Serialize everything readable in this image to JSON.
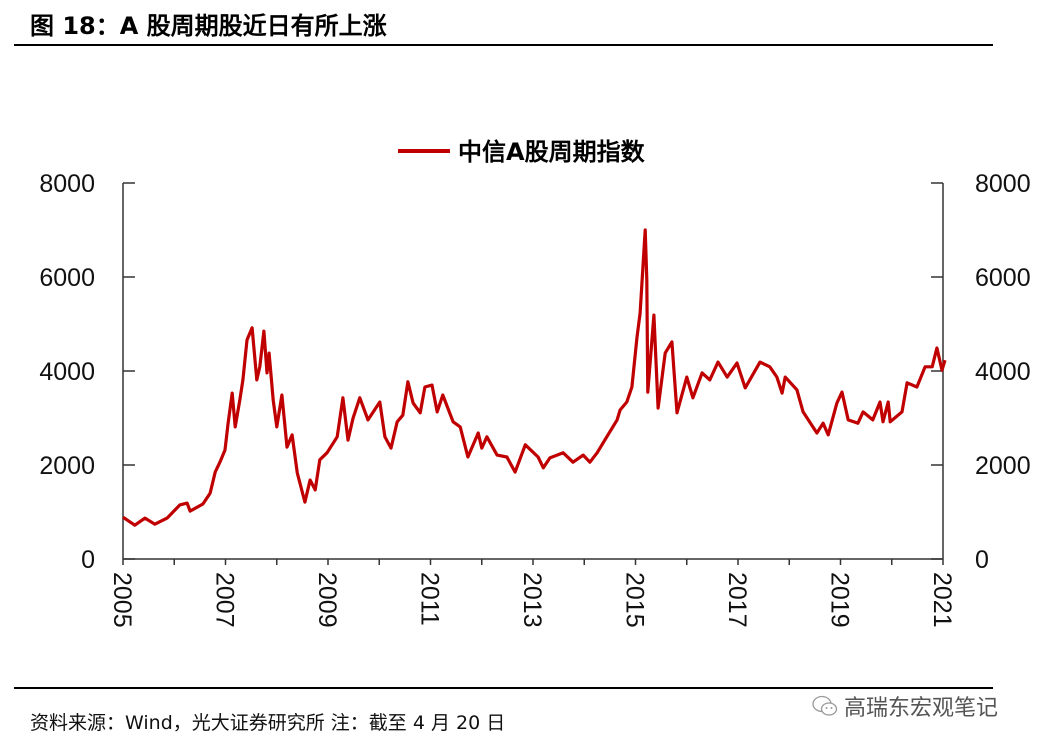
{
  "title": "图 18：A 股周期股近日有所上涨",
  "source": "资料来源：Wind，光大证券研究所 注：截至 4 月 20 日",
  "watermark": "高瑞东宏观笔记",
  "chart_data": {
    "type": "line",
    "title": "",
    "xlabel": "",
    "ylabel": "",
    "xlim": [
      2005,
      2021
    ],
    "ylim": [
      0,
      8000
    ],
    "x_ticks": [
      "2005",
      "2007",
      "2009",
      "2011",
      "2013",
      "2015",
      "2017",
      "2019",
      "2021"
    ],
    "y_ticks": [
      "0",
      "2000",
      "4000",
      "6000",
      "8000"
    ],
    "y_ticks_right": [
      "0",
      "2000",
      "4000",
      "6000",
      "8000"
    ],
    "grid": false,
    "legend": "top-center",
    "series": [
      {
        "name": "中信A股周期指数",
        "color": "#C00000",
        "x": [
          2005.0,
          2005.23,
          2005.43,
          2005.62,
          2005.86,
          2006.11,
          2006.25,
          2006.31,
          2006.56,
          2006.7,
          2006.8,
          2006.89,
          2006.99,
          2007.05,
          2007.13,
          2007.19,
          2007.28,
          2007.34,
          2007.42,
          2007.52,
          2007.61,
          2007.67,
          2007.75,
          2007.81,
          2007.85,
          2007.93,
          2008.0,
          2008.1,
          2008.2,
          2008.3,
          2008.4,
          2008.55,
          2008.65,
          2008.75,
          2008.84,
          2008.98,
          2009.18,
          2009.29,
          2009.39,
          2009.49,
          2009.62,
          2009.78,
          2010.01,
          2010.11,
          2010.23,
          2010.35,
          2010.46,
          2010.56,
          2010.66,
          2010.8,
          2010.89,
          2011.03,
          2011.13,
          2011.24,
          2011.44,
          2011.58,
          2011.73,
          2011.93,
          2012.0,
          2012.1,
          2012.3,
          2012.49,
          2012.65,
          2012.85,
          2013.1,
          2013.2,
          2013.33,
          2013.59,
          2013.78,
          2013.98,
          2014.11,
          2014.25,
          2014.44,
          2014.64,
          2014.7,
          2014.83,
          2014.93,
          2015.03,
          2015.09,
          2015.19,
          2015.22,
          2015.24,
          2015.36,
          2015.44,
          2015.58,
          2015.71,
          2015.81,
          2016.0,
          2016.12,
          2016.3,
          2016.45,
          2016.61,
          2016.79,
          2016.98,
          2017.14,
          2017.43,
          2017.62,
          2017.76,
          2017.86,
          2017.92,
          2018.15,
          2018.27,
          2018.54,
          2018.66,
          2018.76,
          2018.93,
          2019.03,
          2019.15,
          2019.34,
          2019.44,
          2019.63,
          2019.77,
          2019.83,
          2019.93,
          2019.97,
          2020.2,
          2020.3,
          2020.49,
          2020.65,
          2020.79,
          2020.88,
          2020.98,
          2021.04
        ],
        "values": [
          890,
          720,
          870,
          740,
          870,
          1150,
          1190,
          1020,
          1170,
          1400,
          1850,
          2060,
          2320,
          2890,
          3530,
          2810,
          3380,
          3810,
          4660,
          4920,
          3810,
          4090,
          4850,
          3960,
          4380,
          3380,
          2810,
          3490,
          2380,
          2640,
          1830,
          1210,
          1680,
          1470,
          2110,
          2260,
          2600,
          3430,
          2530,
          3000,
          3430,
          2960,
          3340,
          2600,
          2360,
          2920,
          3060,
          3770,
          3320,
          3110,
          3660,
          3700,
          3130,
          3490,
          2920,
          2810,
          2170,
          2680,
          2360,
          2600,
          2210,
          2170,
          1850,
          2430,
          2170,
          1940,
          2150,
          2260,
          2060,
          2210,
          2060,
          2260,
          2600,
          2960,
          3170,
          3340,
          3660,
          4720,
          5230,
          7000,
          5940,
          3550,
          5190,
          3210,
          4380,
          4620,
          3110,
          3870,
          3430,
          3960,
          3810,
          4190,
          3870,
          4170,
          3640,
          4190,
          4090,
          3870,
          3530,
          3870,
          3600,
          3130,
          2680,
          2890,
          2640,
          3320,
          3550,
          2960,
          2890,
          3130,
          2960,
          3340,
          2920,
          3340,
          2920,
          3130,
          3750,
          3660,
          4090,
          4090,
          4490,
          4020,
          4230
        ]
      }
    ]
  }
}
